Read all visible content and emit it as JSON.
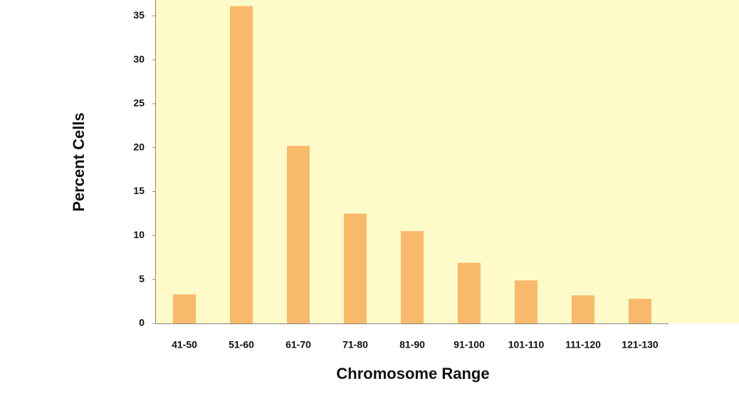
{
  "chart_data": {
    "type": "bar",
    "x_label": "Chromosome Range",
    "y_label": "Percent Cells",
    "categories": [
      "41-50",
      "51-60",
      "61-70",
      "71-80",
      "81-90",
      "91-100",
      "101-110",
      "111-120",
      "121-130"
    ],
    "values": [
      3.3,
      36.1,
      20.2,
      12.5,
      10.5,
      6.9,
      4.9,
      3.2,
      2.8
    ],
    "color": "#f9b96b",
    "plot_background": "#fefbc9",
    "ylim": [
      0,
      36.8
    ],
    "yticks": [
      0,
      5,
      10,
      15,
      20,
      25,
      30,
      35
    ],
    "grid": false
  }
}
